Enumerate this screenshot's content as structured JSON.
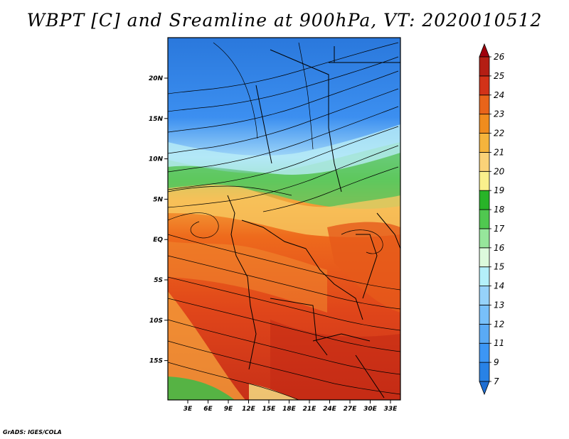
{
  "title": "WBPT [C] and Sreamline at 900hPa, VT: 2020010512",
  "credit": "GrADS: IGES/COLA",
  "map": {
    "lon_range": [
      0,
      35
    ],
    "lat_range": [
      -20,
      25
    ],
    "lon_ticks": [
      "3E",
      "6E",
      "9E",
      "12E",
      "15E",
      "18E",
      "21E",
      "24E",
      "27E",
      "30E",
      "33E"
    ],
    "lat_ticks": [
      "20N",
      "15N",
      "10N",
      "5N",
      "EQ",
      "5S",
      "10S",
      "15S"
    ],
    "field": "wet-bulb potential temperature",
    "overlay": "streamlines"
  },
  "colorbar": {
    "labels": [
      "7",
      "9",
      "11",
      "12",
      "13",
      "14",
      "15",
      "16",
      "17",
      "18",
      "19",
      "20",
      "21",
      "22",
      "23",
      "24",
      "25",
      "26"
    ],
    "colors": [
      "#1e6ed2",
      "#2882e6",
      "#3c96f5",
      "#5aaaf5",
      "#78c0fa",
      "#96d2fa",
      "#b4f0fa",
      "#dcfadc",
      "#96e69b",
      "#50c850",
      "#28b428",
      "#faf08c",
      "#fad278",
      "#f5b43c",
      "#f08c1e",
      "#e8641a",
      "#d23218",
      "#b41e14",
      "#a0000c"
    ]
  }
}
